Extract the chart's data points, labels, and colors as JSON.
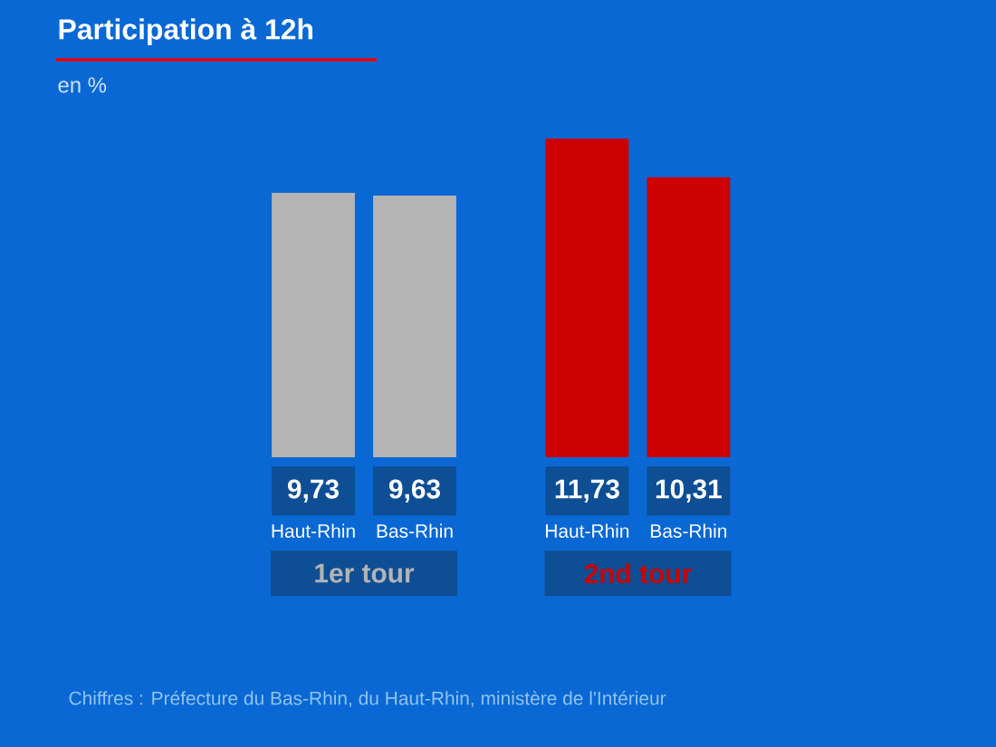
{
  "chart_data": {
    "type": "bar",
    "title": "Participation à 12h",
    "subtitle": "en %",
    "categories": [
      "Haut-Rhin",
      "Bas-Rhin",
      "Haut-Rhin",
      "Bas-Rhin"
    ],
    "series": [
      {
        "name": "1er tour",
        "color": "#b4b4b4",
        "values": [
          9.73,
          9.63,
          null,
          null
        ],
        "value_labels": [
          "9,73",
          "9,63",
          null,
          null
        ]
      },
      {
        "name": "2nd tour",
        "color": "#cc0000",
        "values": [
          null,
          null,
          11.73,
          10.31
        ],
        "value_labels": [
          null,
          null,
          "11,73",
          "10,31"
        ]
      }
    ],
    "annotations": [
      "Chiffres : Préfecture du Bas-Rhin, du Haut-Rhin, ministère de l'Intérieur"
    ]
  }
}
